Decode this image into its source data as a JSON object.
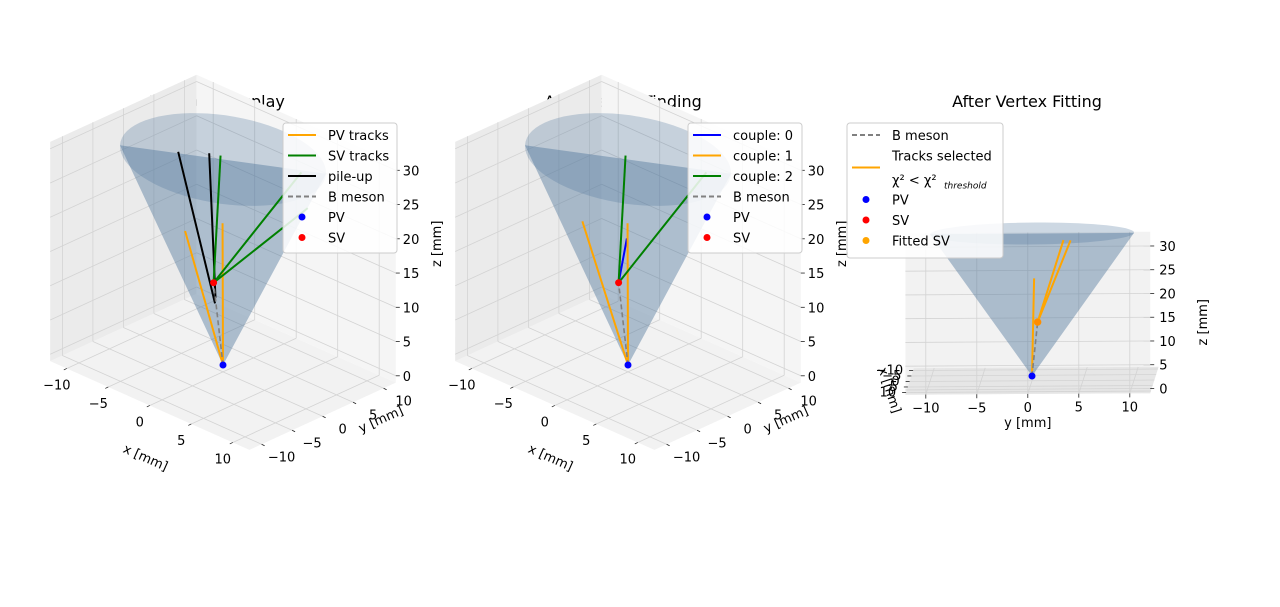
{
  "chart_data": [
    {
      "type": "3d-line",
      "title": "Jet Event Display",
      "xlabel": "x [mm]",
      "ylabel": "y [mm]",
      "zlabel": "z [mm]",
      "xticks": [
        "−10",
        "−5",
        "0",
        "5",
        "10"
      ],
      "yticks": [
        "−10",
        "−5",
        "0",
        "5",
        "10"
      ],
      "zticks": [
        "0",
        "5",
        "10",
        "15",
        "20",
        "25",
        "30"
      ],
      "xlim": [
        -12,
        12
      ],
      "ylim": [
        -12,
        12
      ],
      "zlim": [
        -1,
        31
      ],
      "grid": true,
      "legend_position": "top-right",
      "legend": [
        {
          "label": "PV tracks",
          "kind": "line",
          "color": "#ffa500"
        },
        {
          "label": "SV tracks",
          "kind": "line",
          "color": "#008000"
        },
        {
          "label": "pile-up",
          "kind": "line",
          "color": "#000000"
        },
        {
          "label": "B meson",
          "kind": "dashed",
          "color": "#808080"
        },
        {
          "label": "PV",
          "kind": "marker",
          "color": "#0000ff"
        },
        {
          "label": "SV",
          "kind": "marker",
          "color": "#ff0000"
        }
      ],
      "cone": {
        "apex": [
          0,
          0,
          0
        ],
        "radius": 10,
        "height": 30
      },
      "points": {
        "PV": [
          0,
          0,
          0
        ],
        "SV": [
          -1.5,
          0.5,
          11
        ]
      },
      "tracks": [
        {
          "group": "PV tracks",
          "color": "#ffa500",
          "from": [
            0,
            0,
            0
          ],
          "to": [
            -4.2,
            -0.5,
            17.5
          ]
        },
        {
          "group": "PV tracks",
          "color": "#ffa500",
          "from": [
            0,
            0,
            0
          ],
          "to": [
            -0.2,
            0.2,
            20.5
          ]
        },
        {
          "group": "pile-up",
          "color": "#000000",
          "from": [
            -1.4,
            0.6,
            8
          ],
          "to": [
            -6.5,
            1.5,
            27
          ]
        },
        {
          "group": "pile-up",
          "color": "#000000",
          "from": [
            -1.2,
            0.4,
            9
          ],
          "to": [
            -3.5,
            2.5,
            28
          ]
        },
        {
          "group": "SV tracks",
          "color": "#008000",
          "from": [
            -1.5,
            0.5,
            11
          ],
          "to": [
            -2.5,
            3,
            28
          ]
        },
        {
          "group": "SV tracks",
          "color": "#008000",
          "from": [
            -1.5,
            0.5,
            11
          ],
          "to": [
            6.5,
            4,
            30
          ]
        },
        {
          "group": "SV tracks",
          "color": "#008000",
          "from": [
            -1.5,
            0.5,
            11
          ],
          "to": [
            8,
            3,
            26
          ]
        }
      ],
      "bmeson": {
        "from": [
          0,
          0,
          0
        ],
        "to": [
          -1.5,
          0.5,
          11
        ]
      }
    },
    {
      "type": "3d-line",
      "title": "After Vertex Finding",
      "xlabel": "x [mm]",
      "ylabel": "y [mm]",
      "zlabel": "z [mm]",
      "xticks": [
        "−10",
        "−5",
        "0",
        "5",
        "10"
      ],
      "yticks": [
        "−10",
        "−5",
        "0",
        "5",
        "10"
      ],
      "zticks": [
        "0",
        "5",
        "10",
        "15",
        "20",
        "25",
        "30"
      ],
      "xlim": [
        -12,
        12
      ],
      "ylim": [
        -12,
        12
      ],
      "zlim": [
        -1,
        31
      ],
      "grid": true,
      "legend_position": "top-right",
      "legend": [
        {
          "label": "couple: 0",
          "kind": "line",
          "color": "#0000ff"
        },
        {
          "label": "couple: 1",
          "kind": "line",
          "color": "#ffa500"
        },
        {
          "label": "couple: 2",
          "kind": "line",
          "color": "#008000"
        },
        {
          "label": "B meson",
          "kind": "dashed",
          "color": "#808080"
        },
        {
          "label": "PV",
          "kind": "marker",
          "color": "#0000ff"
        },
        {
          "label": "SV",
          "kind": "marker",
          "color": "#ff0000"
        }
      ],
      "cone": {
        "apex": [
          0,
          0,
          0
        ],
        "radius": 10,
        "height": 30
      },
      "points": {
        "PV": [
          0,
          0,
          0
        ],
        "SV": [
          -1.5,
          0.5,
          11
        ]
      },
      "tracks": [
        {
          "group": "couple: 0",
          "color": "#0000ff",
          "from": [
            -1.5,
            0.5,
            11
          ],
          "to": [
            -0.5,
            0.5,
            18
          ]
        },
        {
          "group": "couple: 1",
          "color": "#ffa500",
          "from": [
            0,
            0,
            0
          ],
          "to": [
            -5.5,
            0,
            18
          ]
        },
        {
          "group": "couple: 1",
          "color": "#ffa500",
          "from": [
            0,
            0,
            0
          ],
          "to": [
            -0.2,
            0.2,
            20.5
          ]
        },
        {
          "group": "couple: 2",
          "color": "#008000",
          "from": [
            -1.5,
            0.5,
            11
          ],
          "to": [
            -2.5,
            3,
            28
          ]
        },
        {
          "group": "couple: 2",
          "color": "#008000",
          "from": [
            -1.5,
            0.5,
            11
          ],
          "to": [
            6.5,
            4,
            30
          ]
        }
      ],
      "bmeson": {
        "from": [
          0,
          0,
          0
        ],
        "to": [
          -1.5,
          0.5,
          11
        ]
      }
    },
    {
      "type": "3d-line",
      "title": "After Vertex Fitting",
      "xlabel": "x [mm]",
      "ylabel": "y [mm]",
      "zlabel": "z [mm]",
      "xticks": [
        "−10",
        "−5",
        "0",
        "5",
        "10"
      ],
      "yticks": [
        "−10",
        "−5",
        "0",
        "5",
        "10"
      ],
      "zticks": [
        "0",
        "5",
        "10",
        "15",
        "20",
        "25",
        "30"
      ],
      "xlim": [
        -12,
        12
      ],
      "ylim": [
        -12,
        12
      ],
      "zlim": [
        -1,
        33
      ],
      "grid": true,
      "legend_position": "top-left",
      "legend": [
        {
          "label": "B meson",
          "kind": "dashed",
          "color": "#808080"
        },
        {
          "label": "Tracks selected",
          "label2": "χ² < χ²",
          "label2_sub": "threshold",
          "kind": "line",
          "color": "#ffa500"
        },
        {
          "label": "PV",
          "kind": "marker",
          "color": "#0000ff"
        },
        {
          "label": "SV",
          "kind": "marker",
          "color": "#ff0000"
        },
        {
          "label": "Fitted SV",
          "kind": "marker",
          "color": "#ffa500"
        }
      ],
      "cone": {
        "apex": [
          0,
          0,
          0
        ],
        "radius": 10,
        "height": 30
      },
      "points": {
        "PV": [
          0,
          0,
          0
        ],
        "SV": [
          -1.5,
          0.5,
          11
        ],
        "Fitted SV": [
          -1.5,
          0.5,
          11
        ]
      },
      "tracks": [
        {
          "group": "Tracks selected",
          "color": "#ffa500",
          "from": [
            -1.5,
            0.5,
            11
          ],
          "to": [
            -2.5,
            3,
            28
          ]
        },
        {
          "group": "Tracks selected",
          "color": "#ffa500",
          "from": [
            -1.5,
            0.5,
            11
          ],
          "to": [
            6.5,
            4,
            30
          ]
        },
        {
          "group": "Tracks selected",
          "color": "#ffa500",
          "from": [
            0,
            0,
            0
          ],
          "to": [
            -0.2,
            0.2,
            20.5
          ]
        }
      ],
      "bmeson": {
        "from": [
          0,
          0,
          0
        ],
        "to": [
          -1.5,
          0.5,
          11
        ]
      }
    }
  ]
}
